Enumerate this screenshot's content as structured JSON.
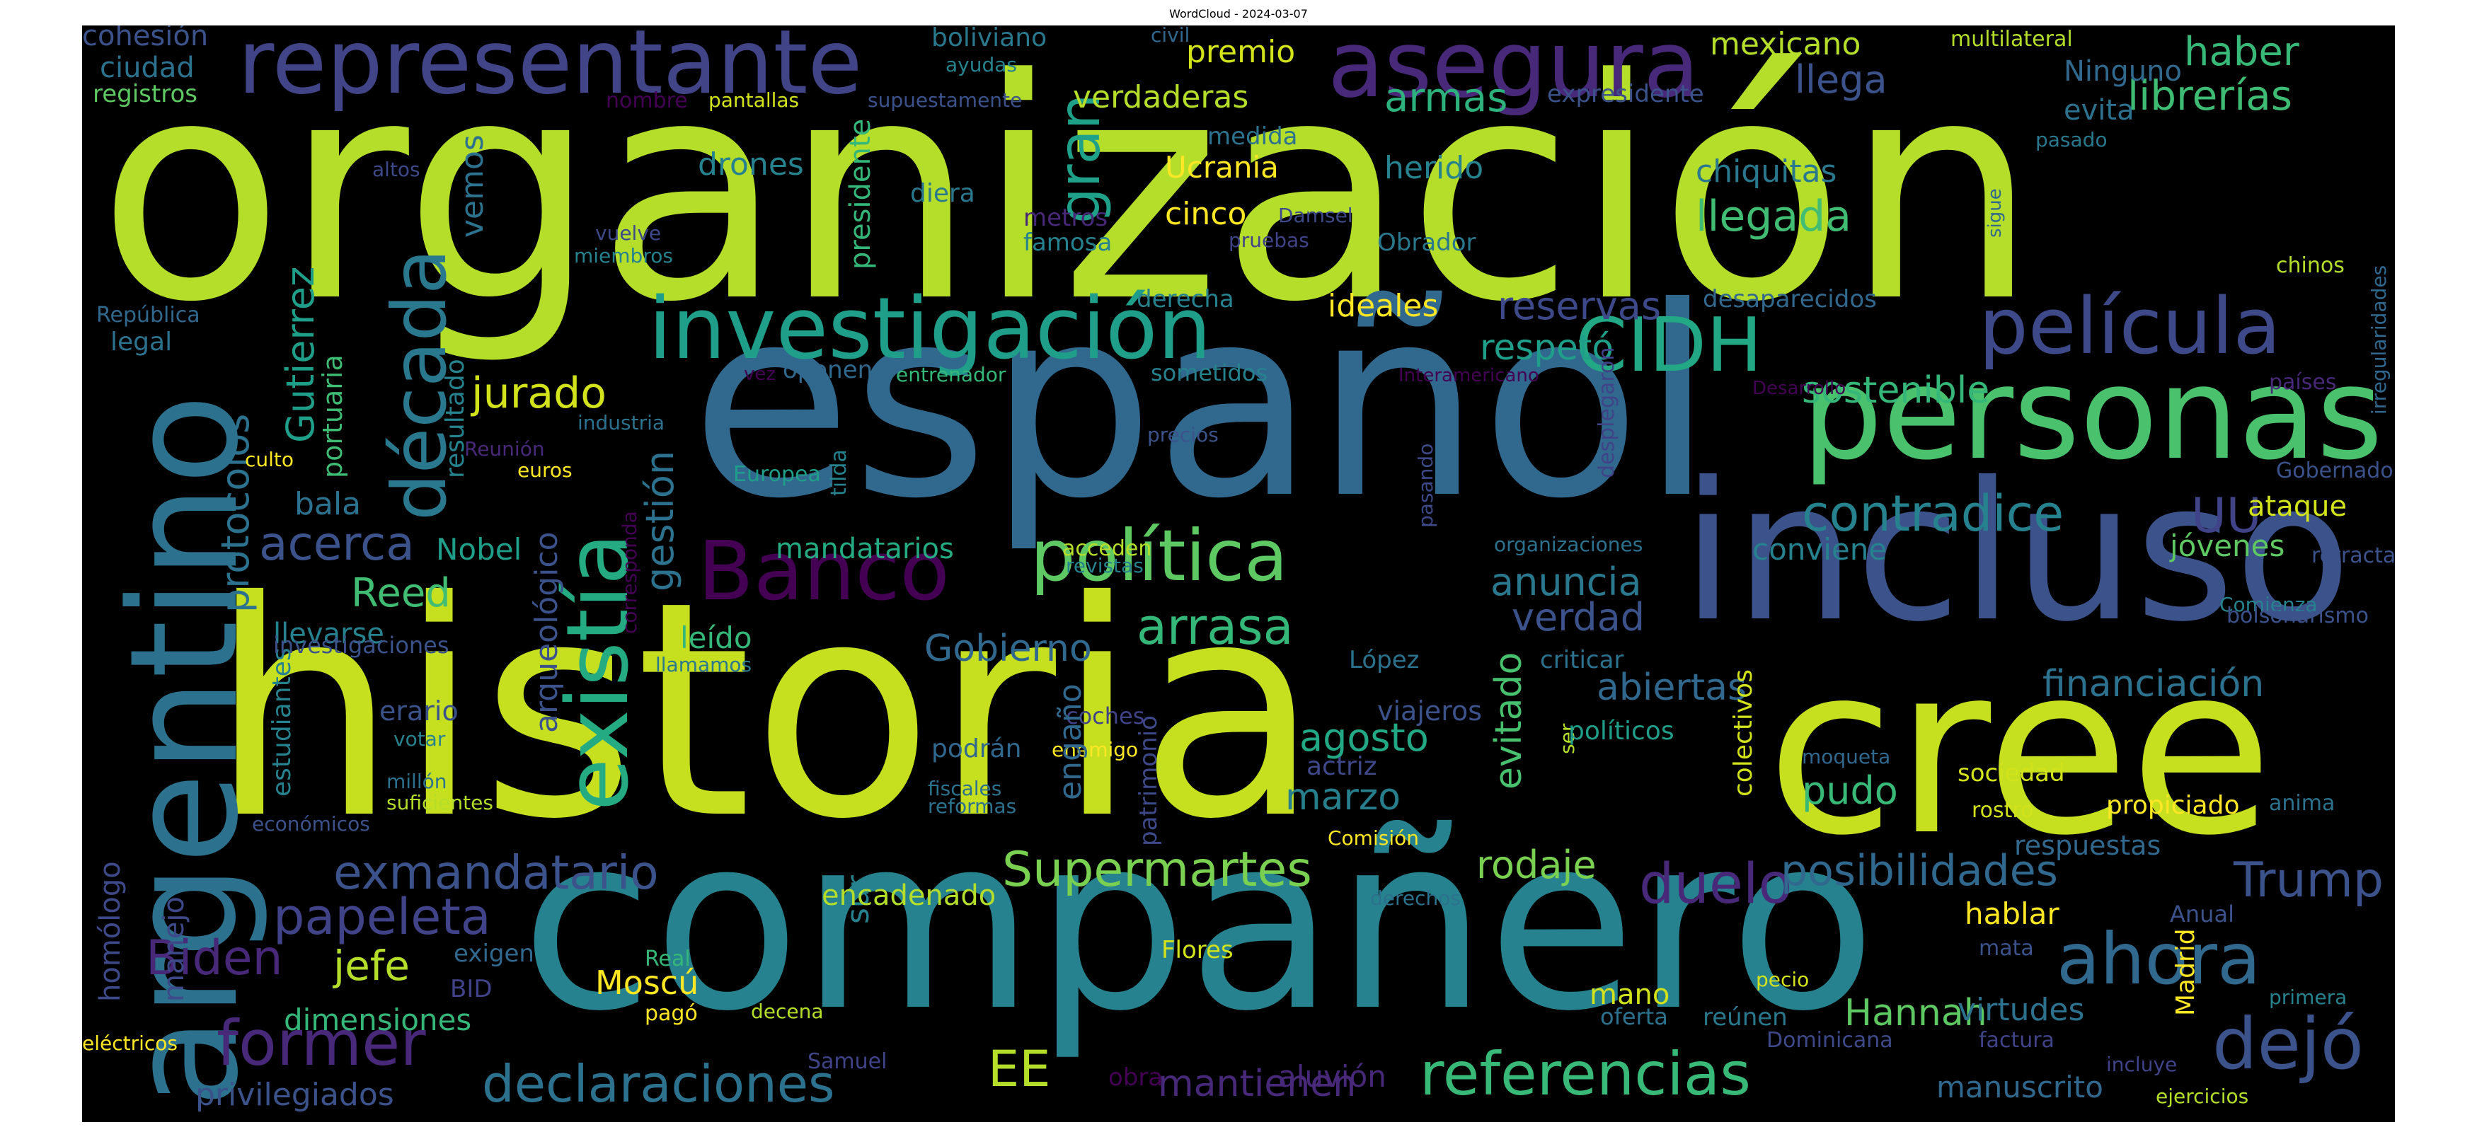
{
  "title": "WordCloud - 2024-03-07",
  "palette": {
    "yellow": "#fde725",
    "lime": "#b5de2b",
    "lightgreen": "#6ece58",
    "green": "#35b779",
    "teal": "#1f9e89",
    "tealblue": "#26828e",
    "blue": "#31688e",
    "indigo": "#3e4989",
    "purple": "#482878",
    "darkpurple": "#440154",
    "background": "#000000"
  },
  "words": [
    {
      "t": "organización",
      "c": "#b5de2b"
    },
    {
      "t": "historia",
      "c": "#c6e020"
    },
    {
      "t": "español",
      "c": "#31688e"
    },
    {
      "t": "compañero",
      "c": "#26828e"
    },
    {
      "t": "cree",
      "c": "#c6e020"
    },
    {
      "t": "incluso",
      "c": "#3b528b"
    },
    {
      "t": "argentino",
      "c": "#2c728e"
    },
    {
      "t": "personas",
      "c": "#4ac16d"
    },
    {
      "t": "investigación",
      "c": "#1f9e89"
    },
    {
      "t": "representante",
      "c": "#414487"
    },
    {
      "t": "asegura",
      "c": "#482878"
    },
    {
      "t": "existía",
      "c": "#25ab82"
    },
    {
      "t": "década",
      "c": "#2a788e"
    },
    {
      "t": "película",
      "c": "#3e4989"
    },
    {
      "t": "política",
      "c": "#5ec962"
    },
    {
      "t": "Banco",
      "c": "#440154"
    },
    {
      "t": "CIDH",
      "c": "#22a884"
    },
    {
      "t": "referencias",
      "c": "#38b977"
    },
    {
      "t": "ahora",
      "c": "#31688e"
    },
    {
      "t": "dejó",
      "c": "#3b528b"
    },
    {
      "t": "former",
      "c": "#482878"
    },
    {
      "t": "declaraciones",
      "c": "#2c728e"
    },
    {
      "t": "exmandatario",
      "c": "#3b528b"
    },
    {
      "t": "Supermartes",
      "c": "#7ad151"
    },
    {
      "t": "contradice",
      "c": "#26828e"
    },
    {
      "t": "papeleta",
      "c": "#404387"
    },
    {
      "t": "arrasa",
      "c": "#35b779"
    },
    {
      "t": "gran",
      "c": "#1fa088"
    },
    {
      "t": "duelo",
      "c": "#482878"
    },
    {
      "t": "posibilidades",
      "c": "#31688e"
    },
    {
      "t": "Trump",
      "c": "#3b528b"
    },
    {
      "t": "Biden",
      "c": "#482878"
    },
    {
      "t": "jefe",
      "c": "#b5de2b"
    },
    {
      "t": "acerca",
      "c": "#3b528b"
    },
    {
      "t": "jurado",
      "c": "#d2e21b"
    },
    {
      "t": "Reed",
      "c": "#40bd72"
    },
    {
      "t": "protocolos",
      "c": "#2c728e"
    },
    {
      "t": "Gutierrez",
      "c": "#1f9e89"
    },
    {
      "t": "gestión",
      "c": "#2c728e"
    },
    {
      "t": "Gobierno",
      "c": "#31688e"
    },
    {
      "t": "agosto",
      "c": "#22a884"
    },
    {
      "t": "marzo",
      "c": "#277f8e"
    },
    {
      "t": "rodaje",
      "c": "#7ad151"
    },
    {
      "t": "evitado",
      "c": "#48c16e"
    },
    {
      "t": "abiertas",
      "c": "#31688e"
    },
    {
      "t": "financiación",
      "c": "#2c728e"
    },
    {
      "t": "anuncia",
      "c": "#2a788e"
    },
    {
      "t": "verdad",
      "c": "#3b528b"
    },
    {
      "t": "reservas",
      "c": "#3e4989"
    },
    {
      "t": "respetó",
      "c": "#1f9e89"
    },
    {
      "t": "sostenible",
      "c": "#35b779"
    },
    {
      "t": "UU",
      "c": "#404387"
    },
    {
      "t": "llegada",
      "c": "#40bd72"
    },
    {
      "t": "haber",
      "c": "#38b977"
    },
    {
      "t": "librerías",
      "c": "#3fbc73"
    },
    {
      "t": "llega",
      "c": "#3b528b"
    },
    {
      "t": "Ninguno",
      "c": "#31688e"
    },
    {
      "t": "evita",
      "c": "#2c728e"
    },
    {
      "t": "mexicano",
      "c": "#b5de2b"
    },
    {
      "t": "premio",
      "c": "#d2e21b"
    },
    {
      "t": "armas",
      "c": "#2db27d"
    },
    {
      "t": "verdaderas",
      "c": "#b5de2b"
    },
    {
      "t": "drones",
      "c": "#26828e"
    },
    {
      "t": "Ucrania",
      "c": "#fde725"
    },
    {
      "t": "cinco",
      "c": "#fde725"
    },
    {
      "t": "herido",
      "c": "#26828e"
    },
    {
      "t": "chiquitas",
      "c": "#2a788e"
    },
    {
      "t": "ideales",
      "c": "#fde725"
    },
    {
      "t": "mandatarios",
      "c": "#25ab82"
    },
    {
      "t": "Hannah",
      "c": "#5ec962"
    },
    {
      "t": "EE",
      "c": "#b5de2b"
    },
    {
      "t": "mantienen",
      "c": "#482878"
    },
    {
      "t": "Moscú",
      "c": "#fde725"
    },
    {
      "t": "dimensiones",
      "c": "#35b779"
    },
    {
      "t": "privilegiados",
      "c": "#3b528b"
    },
    {
      "t": "manuscrito",
      "c": "#31688e"
    },
    {
      "t": "virtudes",
      "c": "#2c728e"
    },
    {
      "t": "hablar",
      "c": "#fde725"
    },
    {
      "t": "pudo",
      "c": "#38b977"
    },
    {
      "t": "ataque",
      "c": "#d2e21b"
    },
    {
      "t": "jóvenes",
      "c": "#5ec962"
    },
    {
      "t": "conviene",
      "c": "#26828e"
    },
    {
      "t": "bala",
      "c": "#2c728e"
    },
    {
      "t": "Nobel",
      "c": "#1f9e89"
    },
    {
      "t": "leído",
      "c": "#35b779"
    },
    {
      "t": "llevarse",
      "c": "#26828e"
    },
    {
      "t": "estudiantes",
      "c": "#26828e"
    },
    {
      "t": "portuaria",
      "c": "#3fbc73"
    },
    {
      "t": "resultado",
      "c": "#26828e"
    },
    {
      "t": "vemos",
      "c": "#2c728e"
    },
    {
      "t": "presidente",
      "c": "#35b779"
    },
    {
      "t": "ciudad",
      "c": "#2c728e"
    },
    {
      "t": "cohesión",
      "c": "#3b528b"
    },
    {
      "t": "registros",
      "c": "#5ec962"
    },
    {
      "t": "boliviano",
      "c": "#2a788e"
    },
    {
      "t": "ayudas",
      "c": "#26828e"
    },
    {
      "t": "civil",
      "c": "#31688e"
    },
    {
      "t": "multilateral",
      "c": "#b5de2b"
    },
    {
      "t": "nombre",
      "c": "#440154"
    },
    {
      "t": "pantallas",
      "c": "#d2e21b"
    },
    {
      "t": "supuestamente",
      "c": "#3b528b"
    },
    {
      "t": "expresidente",
      "c": "#3b528b"
    },
    {
      "t": "medida",
      "c": "#2c728e"
    },
    {
      "t": "diera",
      "c": "#2a788e"
    },
    {
      "t": "metros",
      "c": "#482878"
    },
    {
      "t": "famosa",
      "c": "#26828e"
    },
    {
      "t": "pruebas",
      "c": "#404387"
    },
    {
      "t": "Damsel",
      "c": "#3e4989"
    },
    {
      "t": "Obrador",
      "c": "#2a788e"
    },
    {
      "t": "altos",
      "c": "#3e4989"
    },
    {
      "t": "vuelve",
      "c": "#3e4989"
    },
    {
      "t": "miembros",
      "c": "#26828e"
    },
    {
      "t": "pasado",
      "c": "#2a788e"
    },
    {
      "t": "sigue",
      "c": "#31688e"
    },
    {
      "t": "irregularidades",
      "c": "#31688e"
    },
    {
      "t": "chinos",
      "c": "#b5de2b"
    },
    {
      "t": "derecha",
      "c": "#26828e"
    },
    {
      "t": "desaparecidos",
      "c": "#31688e"
    },
    {
      "t": "República",
      "c": "#31688e"
    },
    {
      "t": "legal",
      "c": "#2c728e"
    },
    {
      "t": "vez",
      "c": "#440154"
    },
    {
      "t": "oponen",
      "c": "#31688e"
    },
    {
      "t": "entrenador",
      "c": "#35b779"
    },
    {
      "t": "sometidos",
      "c": "#26828e"
    },
    {
      "t": "Interamericano",
      "c": "#440154"
    },
    {
      "t": "desplegaron",
      "c": "#404387"
    },
    {
      "t": "Desarrollo",
      "c": "#440154"
    },
    {
      "t": "países",
      "c": "#482878"
    },
    {
      "t": "industria",
      "c": "#2c728e"
    },
    {
      "t": "precios",
      "c": "#3b528b"
    },
    {
      "t": "Reunión",
      "c": "#482878"
    },
    {
      "t": "culto",
      "c": "#fde725"
    },
    {
      "t": "euros",
      "c": "#fde725"
    },
    {
      "t": "corresponda",
      "c": "#440154"
    },
    {
      "t": "Europea",
      "c": "#1f9e89"
    },
    {
      "t": "tilda",
      "c": "#26828e"
    },
    {
      "t": "pasando",
      "c": "#3e4989"
    },
    {
      "t": "Gobernadores",
      "c": "#3b528b"
    },
    {
      "t": "organizaciones",
      "c": "#2c728e"
    },
    {
      "t": "revistas",
      "c": "#26828e"
    },
    {
      "t": "acceden",
      "c": "#b5de2b"
    },
    {
      "t": "retractado",
      "c": "#3b528b"
    },
    {
      "t": "Comienza",
      "c": "#26828e"
    },
    {
      "t": "bolsonarismo",
      "c": "#3b528b"
    },
    {
      "t": "investigaciones",
      "c": "#3b528b"
    },
    {
      "t": "llamamos",
      "c": "#2a788e"
    },
    {
      "t": "López",
      "c": "#2c728e"
    },
    {
      "t": "criticar",
      "c": "#2c728e"
    },
    {
      "t": "arqueológico",
      "c": "#3b528b"
    },
    {
      "t": "patrimonio",
      "c": "#3e4989"
    },
    {
      "t": "ser",
      "c": "#b5de2b"
    },
    {
      "t": "políticos",
      "c": "#1f9e89"
    },
    {
      "t": "colectivos",
      "c": "#d2e21b"
    },
    {
      "t": "viajeros",
      "c": "#3b528b"
    },
    {
      "t": "actriz",
      "c": "#3e4989"
    },
    {
      "t": "coches",
      "c": "#404387"
    },
    {
      "t": "enemigo",
      "c": "#fde725"
    },
    {
      "t": "podrán",
      "c": "#31688e"
    },
    {
      "t": "erario",
      "c": "#3b528b"
    },
    {
      "t": "votar",
      "c": "#26828e"
    },
    {
      "t": "millón",
      "c": "#2c728e"
    },
    {
      "t": "suficientes",
      "c": "#b5de2b"
    },
    {
      "t": "económicos",
      "c": "#3b528b"
    },
    {
      "t": "homólogo",
      "c": "#3e4989"
    },
    {
      "t": "manejo",
      "c": "#3e4989"
    },
    {
      "t": "sur",
      "c": "#26828e"
    },
    {
      "t": "engaño",
      "c": "#31688e"
    },
    {
      "t": "encadenado",
      "c": "#b5de2b"
    },
    {
      "t": "moqueta",
      "c": "#31688e"
    },
    {
      "t": "sociedad",
      "c": "#d2e21b"
    },
    {
      "t": "rostro",
      "c": "#d2e21b"
    },
    {
      "t": "propiciado",
      "c": "#fde725"
    },
    {
      "t": "anima",
      "c": "#2c728e"
    },
    {
      "t": "respuestas",
      "c": "#31688e"
    },
    {
      "t": "Anual",
      "c": "#3b528b"
    },
    {
      "t": "mata",
      "c": "#3b528b"
    },
    {
      "t": "Madrid",
      "c": "#fde725"
    },
    {
      "t": "primera",
      "c": "#26828e"
    },
    {
      "t": "fiscales",
      "c": "#2c728e"
    },
    {
      "t": "reformas",
      "c": "#2c728e"
    },
    {
      "t": "Comisión",
      "c": "#fde725"
    },
    {
      "t": "derechos",
      "c": "#2c728e"
    },
    {
      "t": "exigen",
      "c": "#31688e"
    },
    {
      "t": "BID",
      "c": "#404387"
    },
    {
      "t": "Real",
      "c": "#35b779"
    },
    {
      "t": "pagó",
      "c": "#fde725"
    },
    {
      "t": "decena",
      "c": "#b5de2b"
    },
    {
      "t": "Flores",
      "c": "#d2e21b"
    },
    {
      "t": "mano",
      "c": "#d2e21b"
    },
    {
      "t": "oferta",
      "c": "#2c728e"
    },
    {
      "t": "pecio",
      "c": "#d2e21b"
    },
    {
      "t": "reúnen",
      "c": "#2a788e"
    },
    {
      "t": "Dominicana",
      "c": "#3e4989"
    },
    {
      "t": "factura",
      "c": "#404387"
    },
    {
      "t": "incluye",
      "c": "#404387"
    },
    {
      "t": "ejercicios",
      "c": "#b5de2b"
    },
    {
      "t": "eléctricos",
      "c": "#fde725"
    },
    {
      "t": "Samuel",
      "c": "#404387"
    },
    {
      "t": "obra",
      "c": "#440154"
    },
    {
      "t": "aluvión",
      "c": "#482878"
    }
  ]
}
